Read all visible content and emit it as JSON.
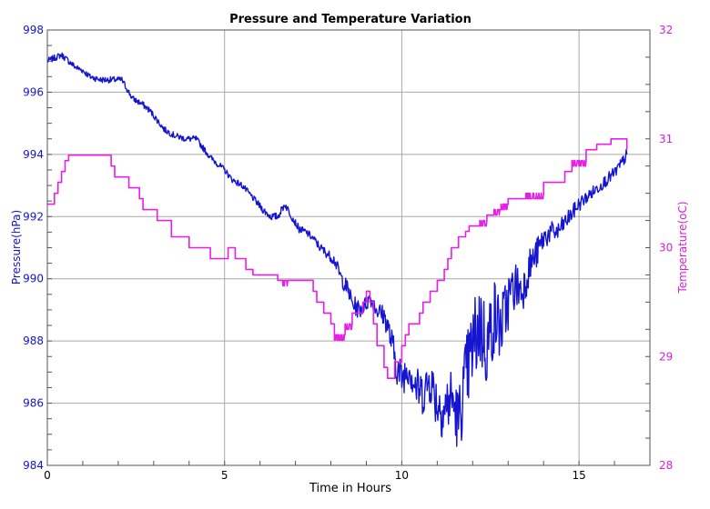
{
  "chart_data": {
    "type": "line",
    "title": "Pressure and Temperature Variation",
    "xlabel": "Time in Hours",
    "ylabel": "Pressure(hPa)",
    "y2label": "Temperature(oC)",
    "xlim": [
      0,
      17
    ],
    "ylim": [
      984,
      998
    ],
    "y2lim": [
      28,
      32
    ],
    "xticks": [
      "0",
      "5",
      "10",
      "15"
    ],
    "xtick_values": [
      0,
      5,
      10,
      15
    ],
    "yticks": [
      "984",
      "986",
      "988",
      "990",
      "992",
      "994",
      "996",
      "998"
    ],
    "yticks_values": [
      984,
      986,
      988,
      990,
      992,
      994,
      996,
      998
    ],
    "y2ticks": [
      "28",
      "29",
      "30",
      "31",
      "32"
    ],
    "y2ticks_values": [
      28,
      29,
      30,
      31,
      32
    ],
    "grid": true,
    "series": [
      {
        "axis": "left",
        "color": "#1515d0",
        "x": [
          0,
          0.2,
          0.4,
          0.6,
          0.8,
          1.0,
          1.2,
          1.5,
          1.8,
          2.1,
          2.2,
          2.4,
          2.7,
          2.9,
          3.1,
          3.3,
          3.6,
          3.9,
          4.2,
          4.4,
          4.6,
          4.8,
          5.0,
          5.2,
          5.5,
          5.8,
          6.1,
          6.3,
          6.5,
          6.7,
          6.9,
          7.1,
          7.3,
          7.5,
          7.7,
          7.9,
          8.1,
          8.3,
          8.5,
          8.6,
          8.8,
          9.0,
          9.1,
          9.3,
          9.5,
          9.6,
          9.8,
          9.9,
          10.0,
          10.2,
          10.4,
          10.6,
          10.8,
          11.0,
          11.2,
          11.4,
          11.6,
          11.8,
          12.0,
          12.2,
          12.4,
          12.6,
          12.8,
          13.0,
          13.2,
          13.4,
          13.6,
          13.8,
          14.0,
          14.2,
          14.4,
          14.6,
          14.8,
          15.0,
          15.2,
          15.4,
          15.6,
          15.8,
          16.0,
          16.2,
          16.35
        ],
        "values": [
          997.0,
          997.1,
          997.2,
          997.0,
          996.8,
          996.7,
          996.5,
          996.4,
          996.4,
          996.4,
          996.2,
          995.8,
          995.6,
          995.4,
          995.1,
          994.8,
          994.6,
          994.5,
          994.5,
          994.2,
          993.9,
          993.7,
          993.5,
          993.2,
          993.0,
          992.6,
          992.2,
          992.0,
          992.0,
          992.4,
          992.0,
          991.6,
          991.5,
          991.3,
          991.0,
          990.8,
          990.6,
          990.0,
          989.6,
          989.2,
          989.0,
          989.2,
          989.4,
          989.0,
          988.8,
          988.5,
          987.5,
          987.0,
          986.8,
          987.2,
          986.5,
          986.3,
          986.8,
          986.0,
          985.8,
          986.2,
          985.4,
          986.8,
          987.8,
          988.6,
          987.8,
          988.8,
          988.4,
          989.3,
          989.8,
          989.6,
          990.4,
          990.8,
          991.3,
          991.5,
          991.5,
          991.8,
          992.1,
          992.4,
          992.6,
          992.8,
          993.0,
          993.2,
          993.4,
          993.7,
          994.0
        ],
        "noise": [
          0.1,
          0.1,
          0.1,
          0.1,
          0.1,
          0.1,
          0.1,
          0.1,
          0.1,
          0.1,
          0.1,
          0.1,
          0.1,
          0.1,
          0.1,
          0.1,
          0.1,
          0.1,
          0.1,
          0.1,
          0.1,
          0.1,
          0.1,
          0.1,
          0.1,
          0.1,
          0.12,
          0.12,
          0.12,
          0.12,
          0.12,
          0.12,
          0.12,
          0.12,
          0.15,
          0.15,
          0.18,
          0.25,
          0.3,
          0.3,
          0.3,
          0.25,
          0.25,
          0.3,
          0.35,
          0.4,
          0.6,
          0.6,
          0.6,
          0.6,
          0.7,
          0.7,
          0.8,
          0.9,
          1.0,
          1.0,
          1.1,
          1.3,
          1.5,
          1.5,
          1.4,
          1.3,
          1.1,
          1.0,
          0.8,
          0.7,
          0.6,
          0.5,
          0.4,
          0.35,
          0.3,
          0.3,
          0.25,
          0.25,
          0.2,
          0.2,
          0.2,
          0.2,
          0.2,
          0.2,
          0.2
        ]
      },
      {
        "axis": "right",
        "color": "#e61ee6",
        "x": [
          0,
          0.2,
          0.3,
          0.4,
          0.5,
          0.6,
          1.0,
          1.8,
          1.9,
          2.2,
          2.3,
          2.6,
          2.7,
          2.9,
          3.1,
          3.5,
          3.9,
          4.0,
          4.5,
          4.6,
          4.9,
          5.1,
          5.3,
          5.6,
          5.8,
          6.2,
          6.5,
          6.6,
          6.8,
          7.3,
          7.5,
          7.6,
          7.8,
          8.0,
          8.1,
          8.3,
          8.4,
          8.6,
          8.9,
          9.0,
          9.1,
          9.2,
          9.3,
          9.5,
          9.6,
          9.7,
          9.8,
          10.0,
          10.1,
          10.2,
          10.3,
          10.5,
          10.6,
          10.8,
          11.0,
          11.2,
          11.3,
          11.4,
          11.6,
          11.8,
          11.9,
          12.0,
          12.2,
          12.4,
          12.6,
          12.8,
          13.0,
          13.3,
          13.5,
          13.8,
          14.0,
          14.3,
          14.6,
          14.8,
          15.1,
          15.2,
          15.5,
          15.9,
          16.3,
          16.35
        ],
        "values": [
          30.4,
          30.5,
          30.6,
          30.7,
          30.8,
          30.85,
          30.85,
          30.75,
          30.65,
          30.65,
          30.55,
          30.45,
          30.35,
          30.35,
          30.25,
          30.1,
          30.1,
          30.0,
          30.0,
          29.9,
          29.9,
          30.0,
          29.9,
          29.8,
          29.75,
          29.75,
          29.7,
          29.7,
          29.7,
          29.7,
          29.6,
          29.5,
          29.4,
          29.3,
          29.2,
          29.2,
          29.3,
          29.4,
          29.5,
          29.6,
          29.5,
          29.3,
          29.1,
          28.9,
          28.8,
          28.8,
          28.95,
          29.1,
          29.2,
          29.3,
          29.3,
          29.4,
          29.5,
          29.6,
          29.7,
          29.8,
          29.9,
          30.0,
          30.1,
          30.15,
          30.2,
          30.2,
          30.25,
          30.3,
          30.35,
          30.4,
          30.45,
          30.45,
          30.5,
          30.5,
          30.6,
          30.6,
          30.7,
          30.8,
          30.8,
          30.9,
          30.95,
          31.0,
          31.0,
          30.9
        ],
        "noise": [
          0,
          0,
          0,
          0,
          0,
          0,
          0,
          0,
          0,
          0,
          0,
          0,
          0,
          0,
          0,
          0,
          0,
          0,
          0,
          0,
          0,
          0,
          0,
          0,
          0,
          0,
          0,
          0.05,
          0,
          0,
          0,
          0,
          0,
          0,
          0.05,
          0.05,
          0.05,
          0,
          0,
          0,
          0,
          0,
          0,
          0,
          0,
          0,
          0,
          0,
          0,
          0,
          0,
          0,
          0,
          0,
          0,
          0,
          0,
          0,
          0,
          0,
          0,
          0,
          0.05,
          0,
          0.05,
          0.05,
          0,
          0,
          0.05,
          0.05,
          0,
          0,
          0,
          0.05,
          0.05,
          0,
          0,
          0,
          0,
          0
        ]
      }
    ]
  }
}
